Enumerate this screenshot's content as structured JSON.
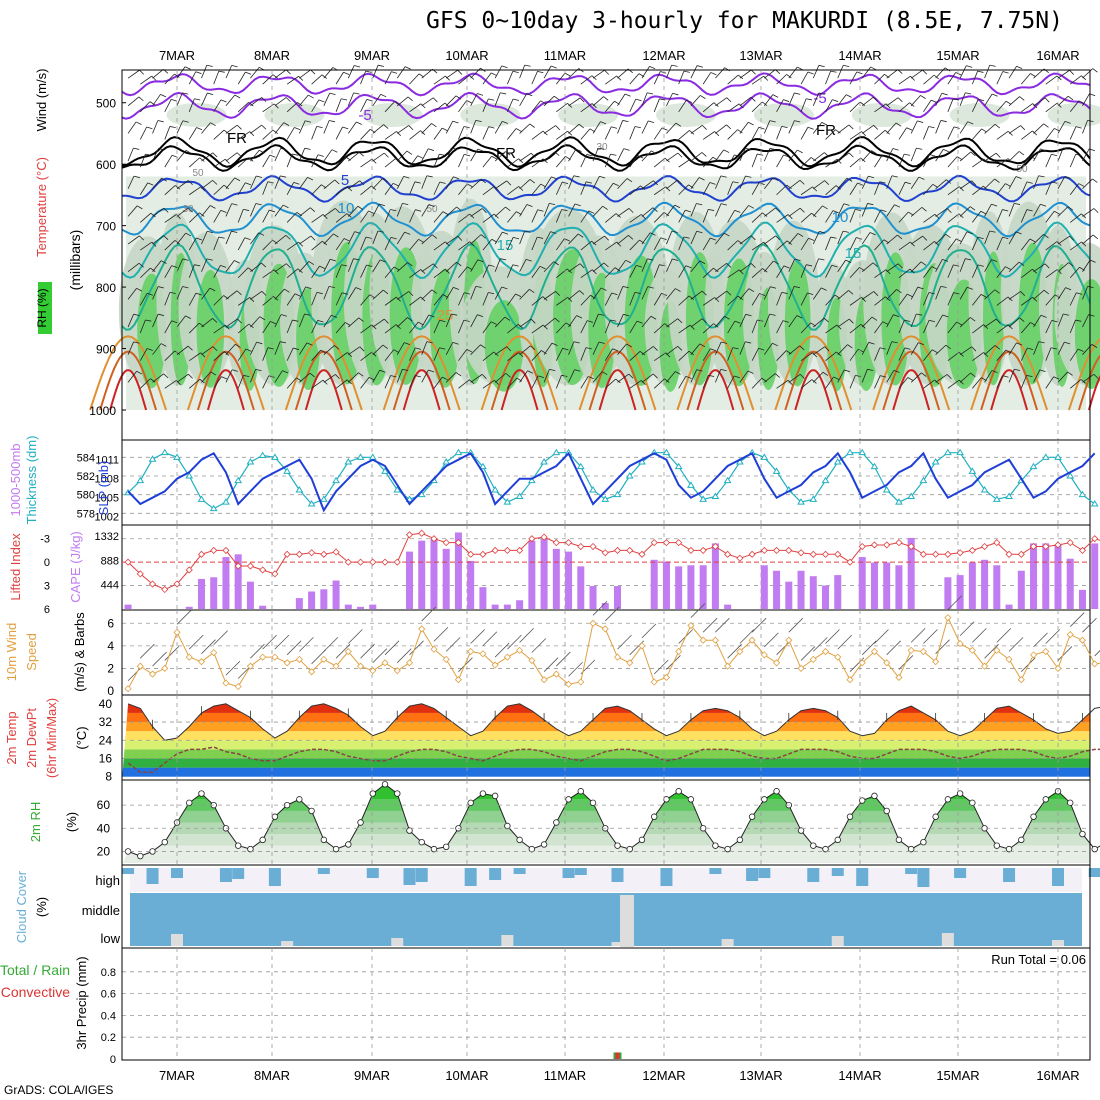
{
  "title": "GFS 0~10day 3-hourly for MAKURDI (8.5E, 7.75N)",
  "footer": "GrADS: COLA/IGES",
  "colors": {
    "rh_green": "#33cc33",
    "rh_grey": "#c7d6c7",
    "temp_blue": "#1f3fd6",
    "cape_purple": "#c07cf0",
    "li_red": "#e04040",
    "wind_orange": "#e0a040",
    "cloud_blue": "#6aaed6",
    "cloud_light": "#f3f0f8",
    "precip_green": "#33aa33",
    "precip_red": "#dd3333"
  },
  "dates": [
    "7MAR",
    "8MAR",
    "9MAR",
    "10MAR",
    "11MAR",
    "12MAR",
    "13MAR",
    "14MAR",
    "15MAR",
    "16MAR"
  ],
  "chart_data": [
    {
      "type": "heatmap",
      "panel": "profile",
      "ylabel_parts": [
        "RH (%)",
        "Temperature (°C)",
        "Wind (m/s)"
      ],
      "ylabel_right": "(millibars)",
      "yticks": [
        500,
        600,
        700,
        800,
        900,
        1000
      ],
      "contour_labels": [
        "-5",
        "FR",
        "5",
        "10",
        "15",
        "25",
        "30",
        "50"
      ],
      "temperature_levels": [
        -5,
        0,
        5,
        10,
        15,
        20,
        25,
        30,
        35
      ],
      "rh_levels": [
        30,
        50,
        70,
        90
      ]
    },
    {
      "type": "line",
      "panel": "thickness_slp",
      "ylabel_left": "1000-500mb Thickness (dm)",
      "ylabel_right": "SLP (mb)",
      "yticks_left": [
        578,
        580,
        582,
        584
      ],
      "yticks_right": [
        "1002",
        "1005",
        "1008",
        "1011"
      ],
      "series": [
        {
          "name": "SLP (mb)",
          "values": [
            1006,
            1004,
            1005,
            1006,
            1008,
            1009,
            1011,
            1012,
            1009,
            1004,
            1006,
            1008,
            1009,
            1010,
            1011,
            1008,
            1003,
            1006,
            1008,
            1010,
            1011,
            1010,
            1007,
            1004,
            1006,
            1008,
            1010,
            1011,
            1012,
            1009,
            1004,
            1006,
            1008,
            1008,
            1009,
            1010,
            1012,
            1008,
            1004,
            1006,
            1008,
            1010,
            1011,
            1012,
            1011,
            1007,
            1005,
            1006,
            1008,
            1010,
            1011,
            1012,
            1008,
            1005,
            1006,
            1007,
            1009,
            1010,
            1012,
            1009,
            1005,
            1006,
            1007,
            1009,
            1010,
            1012,
            1008,
            1005,
            1006,
            1007,
            1009,
            1010,
            1011,
            1008,
            1005,
            1006,
            1008,
            1009,
            1010,
            1012
          ]
        },
        {
          "name": "1000-500mb Thickness (dm)",
          "values": [
            580.2,
            581.5,
            583.8,
            584.5,
            584,
            582,
            579.5,
            578.5,
            579.2,
            581.5,
            583.5,
            584.2,
            584,
            582.5,
            580.5,
            579,
            579.5,
            581.5,
            583.5,
            584,
            584,
            582.5,
            580.5,
            579.5,
            580,
            581.5,
            583.5,
            584.5,
            584.5,
            583,
            580.5,
            579.2,
            579.8,
            581.5,
            583.5,
            584.5,
            584.5,
            583,
            580.5,
            579.5,
            580,
            582,
            583.5,
            584.5,
            584.5,
            583,
            581,
            579.5,
            579.8,
            581.5,
            583.5,
            584.5,
            584,
            582.5,
            580.5,
            579.2,
            579.5,
            581.5,
            583.5,
            584.5,
            584.5,
            583,
            580.5,
            579.2,
            579.8,
            581.5,
            583.5,
            584.5,
            584.5,
            582.5,
            580.5,
            579.5,
            579.8,
            581.5,
            583,
            584,
            584,
            582,
            580,
            579
          ]
        }
      ]
    },
    {
      "type": "bar",
      "panel": "cape_li",
      "ylabel_left": "Lifted Index",
      "ylabel_right": "CAPE (J/kg)",
      "yticks_left": [
        "-3",
        "0",
        "3",
        "6"
      ],
      "yticks_right": [
        "444",
        "888",
        "1332"
      ],
      "series": [
        {
          "name": "CAPE (J/kg)",
          "values": [
            80,
            0,
            0,
            0,
            0,
            40,
            550,
            580,
            950,
            1000,
            500,
            60,
            0,
            0,
            200,
            320,
            360,
            520,
            80,
            40,
            80,
            0,
            0,
            1050,
            1250,
            1280,
            1100,
            1400,
            880,
            400,
            80,
            80,
            160,
            1250,
            1280,
            1100,
            1050,
            780,
            420,
            110,
            420,
            0,
            0,
            900,
            870,
            780,
            800,
            800,
            1200,
            80,
            0,
            0,
            800,
            700,
            500,
            700,
            600,
            430,
            620,
            0,
            950,
            850,
            850,
            800,
            1300,
            0,
            0,
            580,
            620,
            850,
            900,
            800,
            80,
            700,
            1200,
            1200,
            1180,
            920,
            350,
            1200,
            1350,
            1200,
            1080
          ]
        },
        {
          "name": "Lifted Index",
          "values": [
            0,
            1.5,
            2.8,
            3.5,
            2.8,
            1,
            -1,
            -1.5,
            -1.5,
            0.5,
            0.5,
            1,
            1.5,
            -1,
            -1,
            -1.2,
            -1,
            -1.3,
            0,
            0,
            0,
            0,
            0,
            -3.5,
            -3.7,
            -3,
            -2.5,
            -2.5,
            -1,
            -1,
            -1.5,
            -1.5,
            -1.5,
            -3,
            -3.2,
            -2.5,
            -2.5,
            -2,
            -2,
            -1.2,
            -1.5,
            -1.5,
            -1,
            -2.5,
            -2.5,
            -2.5,
            -1.5,
            -1.5,
            -2,
            -1,
            -0.5,
            -1,
            -1.5,
            -1.5,
            -1.5,
            -1.2,
            -1,
            -1,
            -1,
            0,
            -2,
            -2.2,
            -2.2,
            -2.5,
            -2,
            -1,
            -1,
            -1,
            -1.2,
            -1.5,
            -2,
            -2.5,
            -1,
            -1,
            -2,
            -2,
            -2.2,
            -2.5,
            -1.5,
            -3,
            -2.5,
            -2,
            -1.8
          ]
        }
      ]
    },
    {
      "type": "line",
      "panel": "wind10m",
      "ylabel_parts": [
        "10m Wind",
        "Speed",
        "(m/s) & Barbs"
      ],
      "yticks": [
        0,
        2,
        4,
        6
      ],
      "series": [
        {
          "name": "10m Wind Speed (m/s)",
          "values": [
            0.2,
            2.2,
            1.5,
            2,
            5.2,
            3,
            2.6,
            3.4,
            0.7,
            0.4,
            2.2,
            3,
            3,
            2.5,
            2.8,
            1.7,
            2.8,
            2.2,
            3.5,
            2.2,
            1.8,
            2.5,
            1.8,
            2.5,
            5.5,
            3.7,
            2.8,
            1,
            3.5,
            3.3,
            2.3,
            3,
            3.6,
            2.7,
            1,
            1.5,
            0.6,
            0.8,
            6,
            5.5,
            3,
            2.5,
            4,
            0.8,
            1.2,
            3.5,
            5.8,
            4.5,
            4.5,
            2.2,
            3.5,
            4.5,
            3.2,
            2.5,
            4.5,
            2,
            2.8,
            3.5,
            3,
            1,
            2.5,
            3.5,
            2.5,
            1.2,
            3.6,
            3.5,
            2.6,
            6.5,
            4.2,
            3.6,
            2.2,
            3.6,
            2.8,
            1,
            3.2,
            3.5,
            2,
            5,
            4.5,
            2.4,
            2.5
          ]
        }
      ]
    },
    {
      "type": "area",
      "panel": "temp2m",
      "ylabel_parts": [
        "2m Temp",
        "2m DewPt",
        "(6hr Min/Max)"
      ],
      "ylabel_right": "(°C)",
      "yticks": [
        8,
        16,
        24,
        32,
        40
      ],
      "series": [
        {
          "name": "2m Temp",
          "values": [
            40,
            38,
            30,
            24,
            25,
            30,
            36,
            39,
            40,
            37,
            34,
            29,
            25,
            28,
            34,
            39,
            40,
            38,
            35,
            30,
            26,
            28,
            34,
            39,
            40,
            38,
            34,
            30,
            26,
            28,
            34,
            39,
            40,
            37,
            33,
            29,
            26,
            28,
            33,
            38,
            39,
            37,
            33,
            29,
            26,
            28,
            33,
            37,
            38,
            37,
            34,
            29,
            26,
            28,
            33,
            37,
            38,
            37,
            34,
            28,
            26,
            27,
            33,
            37,
            39,
            36,
            33,
            28,
            26,
            28,
            33,
            38,
            39,
            36,
            33,
            29,
            27,
            28,
            33,
            38,
            39,
            36,
            31
          ]
        },
        {
          "name": "2m DewPt",
          "values": [
            14,
            10,
            10,
            14,
            18,
            20,
            20,
            21,
            19,
            18,
            16,
            15,
            15,
            17,
            19,
            20,
            20,
            19,
            17,
            16,
            15,
            15,
            17,
            19,
            20,
            20,
            19,
            17,
            16,
            15,
            17,
            19,
            20,
            20,
            19,
            17,
            16,
            15,
            17,
            19,
            20,
            20,
            19,
            17,
            15,
            16,
            18,
            20,
            20,
            20,
            19,
            17,
            16,
            16,
            18,
            20,
            20,
            20,
            19,
            17,
            16,
            16,
            18,
            20,
            20,
            20,
            19,
            17,
            16,
            17,
            19,
            20,
            20,
            20,
            19,
            17,
            16,
            17,
            19,
            20,
            20,
            21,
            21
          ]
        }
      ]
    },
    {
      "type": "area",
      "panel": "rh2m",
      "ylabel_left": "2m RH",
      "ylabel_right": "(%)",
      "yticks": [
        20,
        40,
        60
      ],
      "series": [
        {
          "name": "2m RH (%)",
          "values": [
            20,
            16,
            20,
            28,
            45,
            62,
            70,
            60,
            40,
            25,
            22,
            30,
            50,
            60,
            65,
            55,
            30,
            22,
            26,
            45,
            70,
            78,
            70,
            38,
            28,
            22,
            24,
            40,
            62,
            70,
            68,
            42,
            30,
            22,
            26,
            45,
            65,
            72,
            62,
            40,
            25,
            22,
            30,
            50,
            65,
            72,
            65,
            40,
            25,
            22,
            30,
            50,
            65,
            72,
            60,
            38,
            25,
            22,
            30,
            50,
            64,
            68,
            55,
            30,
            22,
            28,
            50,
            65,
            70,
            62,
            40,
            25,
            22,
            30,
            50,
            65,
            72,
            62,
            35,
            22,
            28,
            50,
            68,
            72
          ]
        }
      ]
    },
    {
      "type": "bar",
      "panel": "cloud",
      "ylabel_left": "Cloud Cover",
      "ylabel_right": "(%)",
      "levels": [
        "high",
        "middle",
        "low"
      ]
    },
    {
      "type": "bar",
      "panel": "precip",
      "ylabel_left_parts": [
        "Total / Rain",
        "Convective"
      ],
      "ylabel_right": "3hr Precip (mm)",
      "yticks": [
        "0",
        "0.2",
        "0.4",
        "0.6",
        "0.8"
      ],
      "annotation": "Run Total = 0.06",
      "series": [
        {
          "name": "3hr Precip (mm)",
          "values": [
            {
              "x": "11MAR 12Z",
              "y": 0.06
            }
          ]
        }
      ]
    }
  ]
}
